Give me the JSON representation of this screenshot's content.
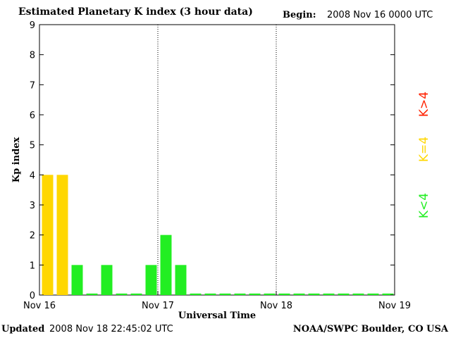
{
  "header": {
    "title": "Estimated Planetary K index (3 hour data)",
    "begin_label": "Begin:",
    "begin_value": "2008 Nov 16 0000 UTC"
  },
  "footer": {
    "updated_label": "Updated",
    "updated_value": "2008 Nov 18 22:45:02 UTC",
    "credit": "NOAA/SWPC Boulder, CO USA"
  },
  "colors": {
    "low": "#22ee22",
    "equal": "#ffd700",
    "high": "#ff2200"
  },
  "chart_data": {
    "type": "bar",
    "ylabel": "Kp index",
    "xlabel": "Universal Time",
    "ylim": [
      0,
      9
    ],
    "yticks": [
      0,
      1,
      2,
      3,
      4,
      5,
      6,
      7,
      8,
      9
    ],
    "xtick_labels": [
      "Nov 16",
      "Nov 17",
      "Nov 18",
      "Nov 19"
    ],
    "x_range_days": 3,
    "bars_per_day": 8,
    "values": [
      4,
      4,
      1,
      0.05,
      1,
      0.05,
      0.05,
      1,
      2,
      1,
      0.05,
      0.05,
      0.05,
      0.05,
      0.05,
      0.05,
      0.05,
      0.05,
      0.05,
      0.05,
      0.05,
      0.05,
      0.05,
      0.05
    ],
    "day_separators": [
      "Nov 17",
      "Nov 18"
    ],
    "legend": [
      {
        "label": "K<4",
        "color_key": "low"
      },
      {
        "label": "K=4",
        "color_key": "equal"
      },
      {
        "label": "K>4",
        "color_key": "high"
      }
    ]
  }
}
